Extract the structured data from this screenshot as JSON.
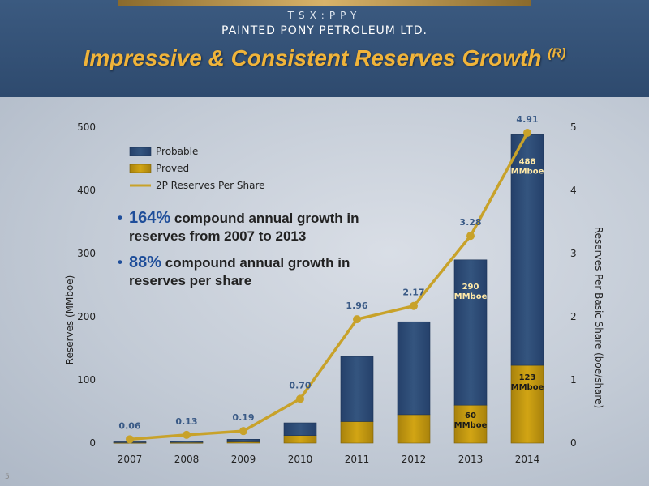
{
  "header": {
    "ticker": "TSX:PPY",
    "company": "PAINTED PONY PETROLEUM LTD.",
    "title": "Impressive & Consistent Reserves Growth",
    "title_sup": "(R)"
  },
  "bullets": [
    {
      "highlight": "164%",
      "text": " compound annual growth in reserves from 2007 to 2013"
    },
    {
      "highlight": "88%",
      "text": " compound annual growth in reserves per share"
    }
  ],
  "slide_number": "5",
  "colors": {
    "probable": "#34557f",
    "proved": "#d2a514",
    "line": "#c8a22a",
    "axis_text": "#222222",
    "label_blue": "#3a5a86"
  },
  "chart_data": {
    "type": "bar",
    "stacked": true,
    "categories": [
      "2007",
      "2008",
      "2009",
      "2010",
      "2011",
      "2012",
      "2013",
      "2014"
    ],
    "series": [
      {
        "name": "Proved",
        "values": [
          1,
          1,
          2,
          12,
          34,
          45,
          60,
          123
        ]
      },
      {
        "name": "Probable",
        "values": [
          1,
          2,
          4,
          20,
          103,
          147,
          230,
          365
        ]
      },
      {
        "name": "2P Reserves Per Share",
        "values": [
          0.06,
          0.13,
          0.19,
          0.7,
          1.96,
          2.17,
          3.28,
          4.91
        ],
        "axis": "right",
        "type": "line"
      }
    ],
    "line_labels": [
      "0.06",
      "0.13",
      "0.19",
      "0.70",
      "1.96",
      "2.17",
      "3.28",
      "4.91"
    ],
    "bar_annotations": [
      {
        "category": "2013",
        "segment": "Probable",
        "text": "290 MMboe"
      },
      {
        "category": "2013",
        "segment": "Proved",
        "text": "60 MMboe"
      },
      {
        "category": "2014",
        "segment": "Probable",
        "text": "488 MMboe"
      },
      {
        "category": "2014",
        "segment": "Proved",
        "text": "123 MMboe"
      }
    ],
    "ylabel": "Reserves (MMboe)",
    "ylabel_right": "Reserves Per Basic Share (boe/share)",
    "ylim": [
      0,
      500
    ],
    "yticks": [
      "0",
      "100",
      "200",
      "300",
      "400",
      "500"
    ],
    "ylim_right": [
      0,
      5
    ],
    "yticks_right": [
      "0",
      "1",
      "2",
      "3",
      "4",
      "5"
    ],
    "grid": false,
    "legend": {
      "position": "top-left",
      "entries": [
        "Probable",
        "Proved",
        "2P Reserves Per Share"
      ]
    }
  }
}
